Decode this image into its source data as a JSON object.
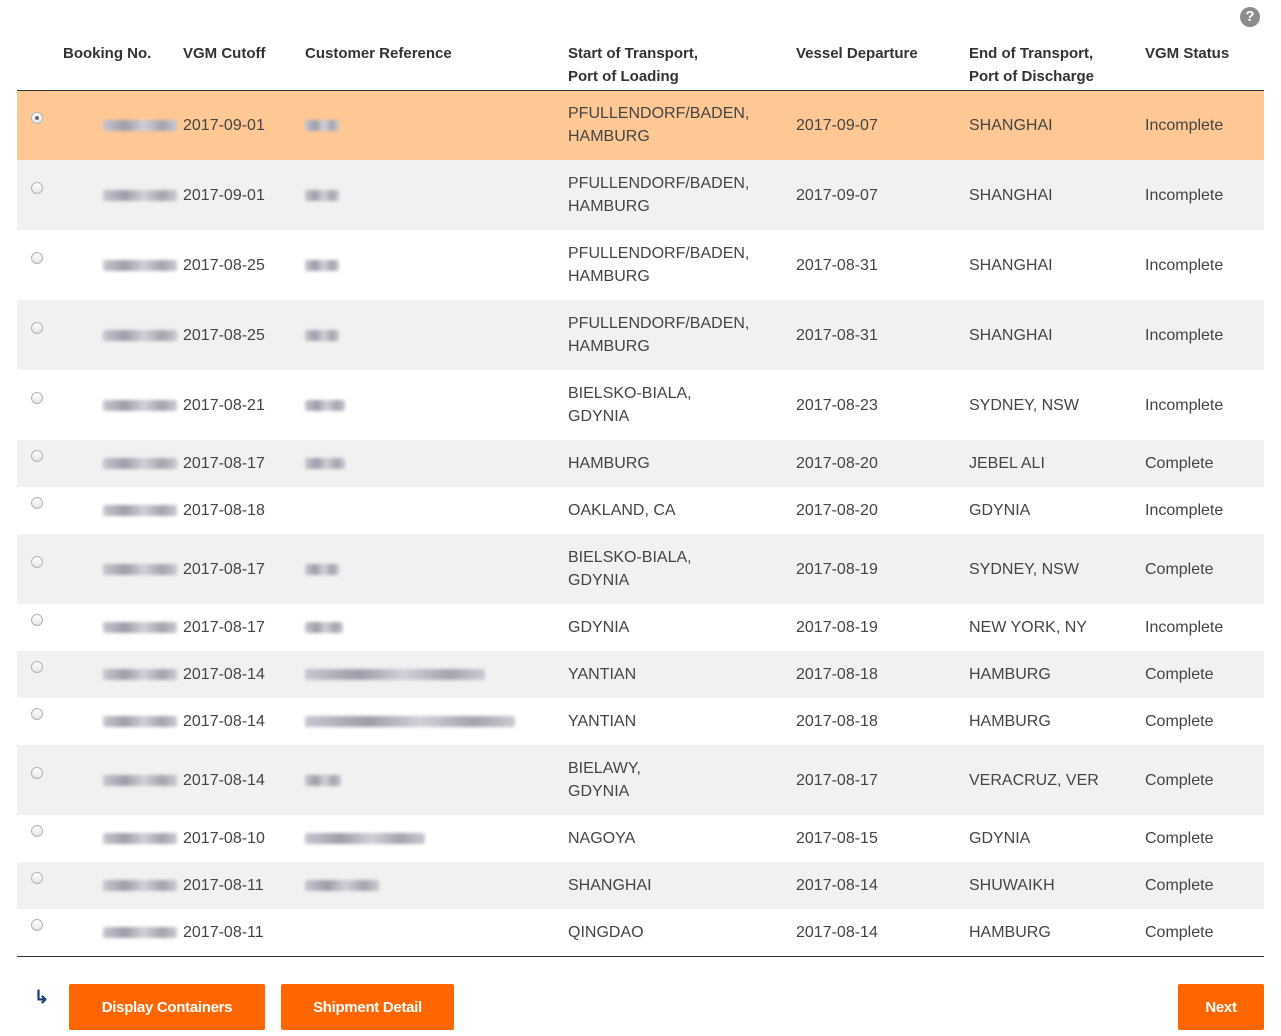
{
  "help_icon": "?",
  "columns": {
    "booking": "Booking No.",
    "vgm_cutoff": "VGM Cutoff",
    "customer_ref": "Customer Reference",
    "start_line1": "Start of Transport,",
    "start_line2": "Port of Loading",
    "vessel_departure": "Vessel Departure",
    "end_line1": "End of Transport,",
    "end_line2": "Port of Discharge",
    "vgm_status": "VGM Status"
  },
  "rows": [
    {
      "selected": true,
      "vgm_cutoff": "2017-09-01",
      "start_line1": "PFULLENDORF/BADEN,",
      "start_line2": "HAMBURG",
      "departure": "2017-09-07",
      "discharge": "SHANGHAI",
      "status": "Incomplete"
    },
    {
      "selected": false,
      "vgm_cutoff": "2017-09-01",
      "start_line1": "PFULLENDORF/BADEN,",
      "start_line2": "HAMBURG",
      "departure": "2017-09-07",
      "discharge": "SHANGHAI",
      "status": "Incomplete"
    },
    {
      "selected": false,
      "vgm_cutoff": "2017-08-25",
      "start_line1": "PFULLENDORF/BADEN,",
      "start_line2": "HAMBURG",
      "departure": "2017-08-31",
      "discharge": "SHANGHAI",
      "status": "Incomplete"
    },
    {
      "selected": false,
      "vgm_cutoff": "2017-08-25",
      "start_line1": "PFULLENDORF/BADEN,",
      "start_line2": "HAMBURG",
      "departure": "2017-08-31",
      "discharge": "SHANGHAI",
      "status": "Incomplete"
    },
    {
      "selected": false,
      "vgm_cutoff": "2017-08-21",
      "start_line1": "BIELSKO-BIALA,",
      "start_line2": "GDYNIA",
      "departure": "2017-08-23",
      "discharge": "SYDNEY, NSW",
      "status": "Incomplete"
    },
    {
      "selected": false,
      "vgm_cutoff": "2017-08-17",
      "start_line1": "HAMBURG",
      "start_line2": "",
      "departure": "2017-08-20",
      "discharge": "JEBEL ALI",
      "status": "Complete"
    },
    {
      "selected": false,
      "vgm_cutoff": "2017-08-18",
      "start_line1": "OAKLAND, CA",
      "start_line2": "",
      "departure": "2017-08-20",
      "discharge": "GDYNIA",
      "status": "Incomplete"
    },
    {
      "selected": false,
      "vgm_cutoff": "2017-08-17",
      "start_line1": "BIELSKO-BIALA,",
      "start_line2": "GDYNIA",
      "departure": "2017-08-19",
      "discharge": "SYDNEY, NSW",
      "status": "Complete"
    },
    {
      "selected": false,
      "vgm_cutoff": "2017-08-17",
      "start_line1": "GDYNIA",
      "start_line2": "",
      "departure": "2017-08-19",
      "discharge": "NEW YORK, NY",
      "status": "Incomplete"
    },
    {
      "selected": false,
      "vgm_cutoff": "2017-08-14",
      "start_line1": "YANTIAN",
      "start_line2": "",
      "departure": "2017-08-18",
      "discharge": "HAMBURG",
      "status": "Complete"
    },
    {
      "selected": false,
      "vgm_cutoff": "2017-08-14",
      "start_line1": "YANTIAN",
      "start_line2": "",
      "departure": "2017-08-18",
      "discharge": "HAMBURG",
      "status": "Complete"
    },
    {
      "selected": false,
      "vgm_cutoff": "2017-08-14",
      "start_line1": "BIELAWY,",
      "start_line2": "GDYNIA",
      "departure": "2017-08-17",
      "discharge": "VERACRUZ, VER",
      "status": "Complete"
    },
    {
      "selected": false,
      "vgm_cutoff": "2017-08-10",
      "start_line1": "NAGOYA",
      "start_line2": "",
      "departure": "2017-08-15",
      "discharge": "GDYNIA",
      "status": "Complete"
    },
    {
      "selected": false,
      "vgm_cutoff": "2017-08-11",
      "start_line1": "SHANGHAI",
      "start_line2": "",
      "departure": "2017-08-14",
      "discharge": "SHUWAIKH",
      "status": "Complete"
    },
    {
      "selected": false,
      "vgm_cutoff": "2017-08-11",
      "start_line1": "QINGDAO",
      "start_line2": "",
      "departure": "2017-08-14",
      "discharge": "HAMBURG",
      "status": "Complete"
    }
  ],
  "footer": {
    "arrow_icon": "↳",
    "display_containers": "Display Containers",
    "shipment_detail": "Shipment Detail",
    "next": "Next"
  },
  "colors": {
    "accent": "#ff6600",
    "selected_row": "#fec895",
    "alt_row": "#f1f1f1"
  }
}
